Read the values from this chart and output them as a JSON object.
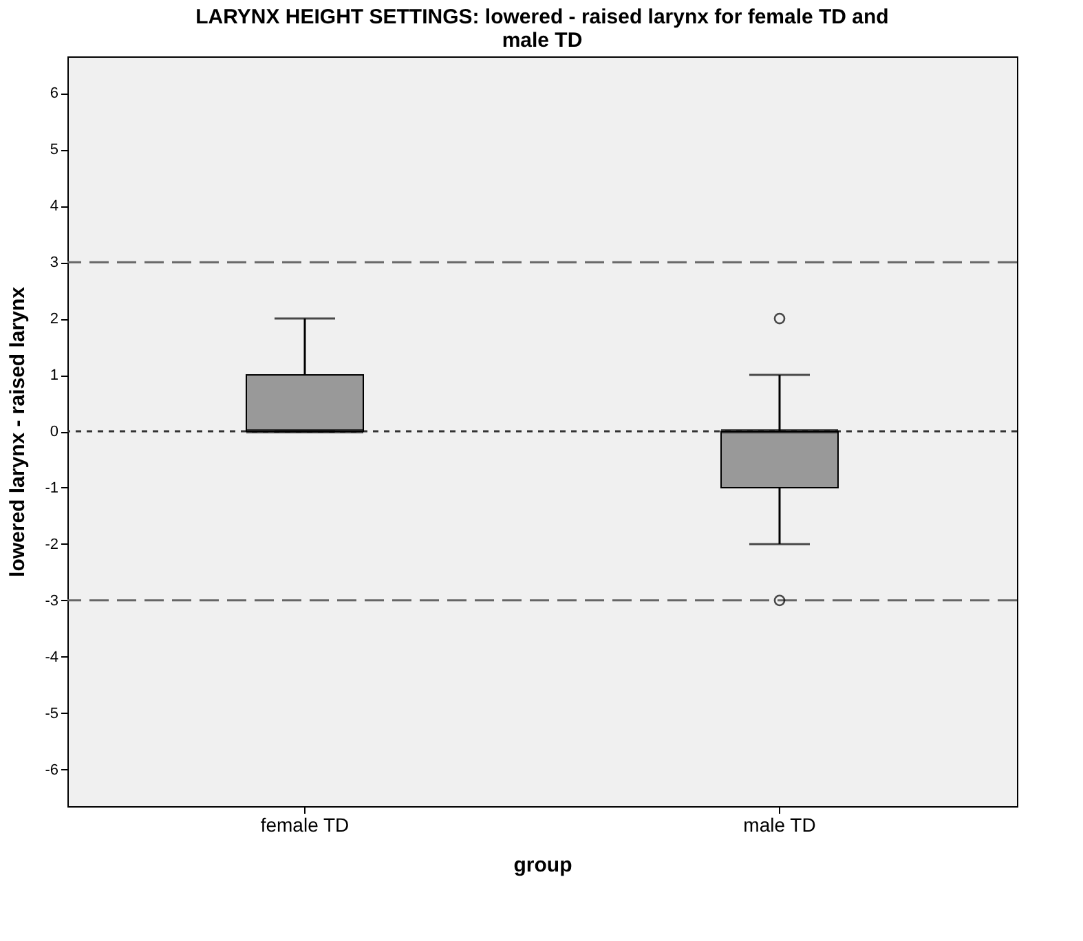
{
  "chart_data": {
    "type": "box",
    "title": "LARYNX HEIGHT SETTINGS: lowered - raised larynx for female TD and male TD",
    "xlabel": "group",
    "ylabel": "lowered larynx - raised larynx",
    "categories": [
      "female TD",
      "male TD"
    ],
    "series": [
      {
        "color": "#999999",
        "boxes": [
          {
            "low": 0,
            "q1": 0,
            "median": 0,
            "q3": 1,
            "high": 2
          },
          {
            "low": -2,
            "q1": -1,
            "median": 0,
            "q3": 0,
            "high": 1,
            "outliers": [
              2,
              -3
            ]
          }
        ]
      }
    ],
    "ylim": [
      -6.65,
      6.65
    ],
    "yticks": [
      -6,
      -5,
      -4,
      -3,
      -2,
      -1,
      0,
      1,
      2,
      3,
      4,
      5,
      6
    ],
    "ref_lines": [
      {
        "axis": "y",
        "value": 3,
        "color": "#666666",
        "line_style": "dashed"
      },
      {
        "axis": "y",
        "value": 0,
        "color": "#333333",
        "line_style": "dotted"
      },
      {
        "axis": "y",
        "value": -3,
        "color": "#666666",
        "line_style": "dashed"
      }
    ],
    "grid": false,
    "marker": "circle"
  }
}
